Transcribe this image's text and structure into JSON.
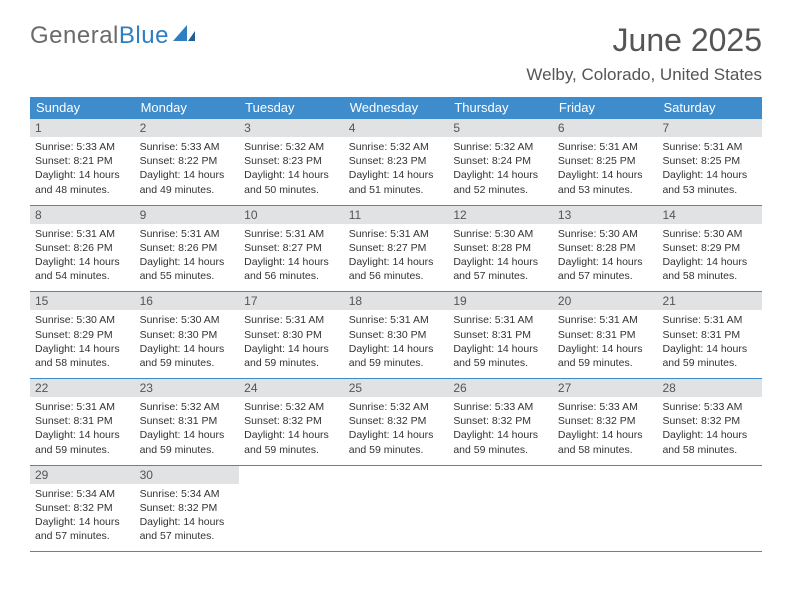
{
  "brand": {
    "part1": "General",
    "part2": "Blue"
  },
  "title": "June 2025",
  "location": "Welby, Colorado, United States",
  "colors": {
    "header_bg": "#3e8ccc",
    "header_text": "#ffffff",
    "daynum_bg": "#e1e2e3",
    "border": "#3e8ccc",
    "title_text": "#555555",
    "body_text": "#333333",
    "logo_gray": "#6b6b6b",
    "logo_blue": "#2d7fc1"
  },
  "weekdays": [
    "Sunday",
    "Monday",
    "Tuesday",
    "Wednesday",
    "Thursday",
    "Friday",
    "Saturday"
  ],
  "weeks": [
    [
      {
        "num": "1",
        "sunrise": "5:33 AM",
        "sunset": "8:21 PM",
        "daylight": "14 hours and 48 minutes."
      },
      {
        "num": "2",
        "sunrise": "5:33 AM",
        "sunset": "8:22 PM",
        "daylight": "14 hours and 49 minutes."
      },
      {
        "num": "3",
        "sunrise": "5:32 AM",
        "sunset": "8:23 PM",
        "daylight": "14 hours and 50 minutes."
      },
      {
        "num": "4",
        "sunrise": "5:32 AM",
        "sunset": "8:23 PM",
        "daylight": "14 hours and 51 minutes."
      },
      {
        "num": "5",
        "sunrise": "5:32 AM",
        "sunset": "8:24 PM",
        "daylight": "14 hours and 52 minutes."
      },
      {
        "num": "6",
        "sunrise": "5:31 AM",
        "sunset": "8:25 PM",
        "daylight": "14 hours and 53 minutes."
      },
      {
        "num": "7",
        "sunrise": "5:31 AM",
        "sunset": "8:25 PM",
        "daylight": "14 hours and 53 minutes."
      }
    ],
    [
      {
        "num": "8",
        "sunrise": "5:31 AM",
        "sunset": "8:26 PM",
        "daylight": "14 hours and 54 minutes."
      },
      {
        "num": "9",
        "sunrise": "5:31 AM",
        "sunset": "8:26 PM",
        "daylight": "14 hours and 55 minutes."
      },
      {
        "num": "10",
        "sunrise": "5:31 AM",
        "sunset": "8:27 PM",
        "daylight": "14 hours and 56 minutes."
      },
      {
        "num": "11",
        "sunrise": "5:31 AM",
        "sunset": "8:27 PM",
        "daylight": "14 hours and 56 minutes."
      },
      {
        "num": "12",
        "sunrise": "5:30 AM",
        "sunset": "8:28 PM",
        "daylight": "14 hours and 57 minutes."
      },
      {
        "num": "13",
        "sunrise": "5:30 AM",
        "sunset": "8:28 PM",
        "daylight": "14 hours and 57 minutes."
      },
      {
        "num": "14",
        "sunrise": "5:30 AM",
        "sunset": "8:29 PM",
        "daylight": "14 hours and 58 minutes."
      }
    ],
    [
      {
        "num": "15",
        "sunrise": "5:30 AM",
        "sunset": "8:29 PM",
        "daylight": "14 hours and 58 minutes."
      },
      {
        "num": "16",
        "sunrise": "5:30 AM",
        "sunset": "8:30 PM",
        "daylight": "14 hours and 59 minutes."
      },
      {
        "num": "17",
        "sunrise": "5:31 AM",
        "sunset": "8:30 PM",
        "daylight": "14 hours and 59 minutes."
      },
      {
        "num": "18",
        "sunrise": "5:31 AM",
        "sunset": "8:30 PM",
        "daylight": "14 hours and 59 minutes."
      },
      {
        "num": "19",
        "sunrise": "5:31 AM",
        "sunset": "8:31 PM",
        "daylight": "14 hours and 59 minutes."
      },
      {
        "num": "20",
        "sunrise": "5:31 AM",
        "sunset": "8:31 PM",
        "daylight": "14 hours and 59 minutes."
      },
      {
        "num": "21",
        "sunrise": "5:31 AM",
        "sunset": "8:31 PM",
        "daylight": "14 hours and 59 minutes."
      }
    ],
    [
      {
        "num": "22",
        "sunrise": "5:31 AM",
        "sunset": "8:31 PM",
        "daylight": "14 hours and 59 minutes."
      },
      {
        "num": "23",
        "sunrise": "5:32 AM",
        "sunset": "8:31 PM",
        "daylight": "14 hours and 59 minutes."
      },
      {
        "num": "24",
        "sunrise": "5:32 AM",
        "sunset": "8:32 PM",
        "daylight": "14 hours and 59 minutes."
      },
      {
        "num": "25",
        "sunrise": "5:32 AM",
        "sunset": "8:32 PM",
        "daylight": "14 hours and 59 minutes."
      },
      {
        "num": "26",
        "sunrise": "5:33 AM",
        "sunset": "8:32 PM",
        "daylight": "14 hours and 59 minutes."
      },
      {
        "num": "27",
        "sunrise": "5:33 AM",
        "sunset": "8:32 PM",
        "daylight": "14 hours and 58 minutes."
      },
      {
        "num": "28",
        "sunrise": "5:33 AM",
        "sunset": "8:32 PM",
        "daylight": "14 hours and 58 minutes."
      }
    ],
    [
      {
        "num": "29",
        "sunrise": "5:34 AM",
        "sunset": "8:32 PM",
        "daylight": "14 hours and 57 minutes."
      },
      {
        "num": "30",
        "sunrise": "5:34 AM",
        "sunset": "8:32 PM",
        "daylight": "14 hours and 57 minutes."
      },
      null,
      null,
      null,
      null,
      null
    ]
  ],
  "labels": {
    "sunrise": "Sunrise: ",
    "sunset": "Sunset: ",
    "daylight": "Daylight: "
  }
}
